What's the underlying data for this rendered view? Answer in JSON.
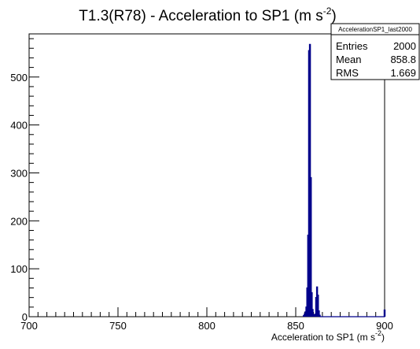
{
  "chart_data": {
    "type": "histogram",
    "title": "T1.3(R78) - Acceleration to SP1 (m s",
    "title_superscript": "-2",
    "title_suffix": ")",
    "xlabel": "Acceleration to SP1 (m s",
    "xlabel_superscript": "-2",
    "xlabel_suffix": ")",
    "ylabel": "",
    "xlim": [
      700,
      900
    ],
    "ylim": [
      0,
      590
    ],
    "x_ticks": [
      700,
      750,
      800,
      850,
      900
    ],
    "y_ticks": [
      0,
      100,
      200,
      300,
      400,
      500
    ],
    "grid": false,
    "line_color": "#00008b",
    "stats_box": {
      "name": "AccelerationSP1_last2000",
      "rows": [
        {
          "label": "Entries",
          "value": "2000"
        },
        {
          "label": "Mean",
          "value": "858.8"
        },
        {
          "label": "RMS",
          "value": "1.669"
        }
      ]
    },
    "bins": [
      {
        "x": 854.5,
        "y": 2
      },
      {
        "x": 855.0,
        "y": 5
      },
      {
        "x": 855.5,
        "y": 10
      },
      {
        "x": 856.0,
        "y": 20
      },
      {
        "x": 856.5,
        "y": 60
      },
      {
        "x": 857.0,
        "y": 170
      },
      {
        "x": 857.5,
        "y": 555
      },
      {
        "x": 858.0,
        "y": 568
      },
      {
        "x": 858.5,
        "y": 290
      },
      {
        "x": 859.0,
        "y": 50
      },
      {
        "x": 859.5,
        "y": 15
      },
      {
        "x": 860.0,
        "y": 4
      },
      {
        "x": 860.5,
        "y": 2
      },
      {
        "x": 861.0,
        "y": 5
      },
      {
        "x": 861.5,
        "y": 40
      },
      {
        "x": 862.0,
        "y": 62
      },
      {
        "x": 862.5,
        "y": 45
      },
      {
        "x": 863.0,
        "y": 12
      },
      {
        "x": 863.5,
        "y": 3
      },
      {
        "x": 900.0,
        "y": 14
      }
    ]
  }
}
